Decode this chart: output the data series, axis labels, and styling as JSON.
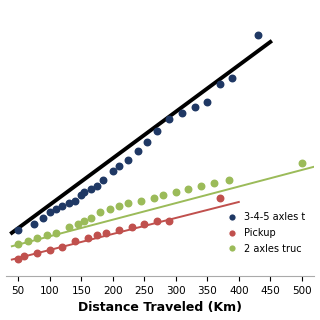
{
  "title": "",
  "xlabel": "Distance Traveled (Km)",
  "ylabel": "",
  "xlim": [
    30,
    520
  ],
  "ylim": [
    1.2,
    10.5
  ],
  "xticks": [
    50,
    100,
    150,
    200,
    250,
    300,
    350,
    400,
    450,
    500
  ],
  "bg_color": "#ffffff",
  "scatter_blue": {
    "color": "#1f3864",
    "x": [
      50,
      75,
      90,
      100,
      110,
      120,
      130,
      140,
      150,
      155,
      165,
      175,
      185,
      200,
      210,
      225,
      240,
      255,
      270,
      290,
      310,
      330,
      350,
      370,
      390,
      430
    ],
    "y": [
      2.8,
      3.0,
      3.2,
      3.4,
      3.5,
      3.6,
      3.7,
      3.8,
      4.0,
      4.1,
      4.2,
      4.3,
      4.5,
      4.8,
      5.0,
      5.2,
      5.5,
      5.8,
      6.2,
      6.6,
      6.8,
      7.0,
      7.2,
      7.8,
      8.0,
      9.5
    ]
  },
  "scatter_red": {
    "color": "#c0504d",
    "x": [
      50,
      60,
      80,
      100,
      120,
      140,
      160,
      175,
      190,
      210,
      230,
      250,
      270,
      290,
      370
    ],
    "y": [
      1.8,
      1.9,
      2.0,
      2.1,
      2.2,
      2.4,
      2.5,
      2.6,
      2.7,
      2.8,
      2.9,
      3.0,
      3.1,
      3.1,
      3.9
    ]
  },
  "scatter_green": {
    "color": "#9bbb59",
    "x": [
      50,
      65,
      80,
      95,
      110,
      130,
      145,
      155,
      165,
      180,
      195,
      210,
      225,
      245,
      265,
      280,
      300,
      320,
      340,
      360,
      385,
      500
    ],
    "y": [
      2.3,
      2.4,
      2.5,
      2.6,
      2.7,
      2.9,
      3.0,
      3.1,
      3.2,
      3.4,
      3.5,
      3.6,
      3.7,
      3.8,
      3.9,
      4.0,
      4.1,
      4.2,
      4.3,
      4.4,
      4.5,
      5.1
    ]
  },
  "line_black": {
    "color": "#000000",
    "lw": 2.8,
    "x0": 40,
    "x1": 450,
    "slope": 0.016,
    "intercept": 2.05
  },
  "line_red": {
    "color": "#c0504d",
    "lw": 1.4,
    "x0": 40,
    "x1": 400,
    "slope": 0.0055,
    "intercept": 1.55
  },
  "line_green": {
    "color": "#9bbb59",
    "lw": 1.4,
    "x0": 40,
    "x1": 520,
    "slope": 0.0057,
    "intercept": 2.0
  },
  "legend_items": [
    {
      "label": "3-4-5 axles t",
      "color": "#1f3864"
    },
    {
      "label": "Pickup",
      "color": "#c0504d"
    },
    {
      "label": "2 axles truc",
      "color": "#9bbb59"
    }
  ],
  "legend_fontsize": 7,
  "xlabel_fontsize": 9,
  "tick_fontsize": 7.5,
  "marker_size": 22
}
